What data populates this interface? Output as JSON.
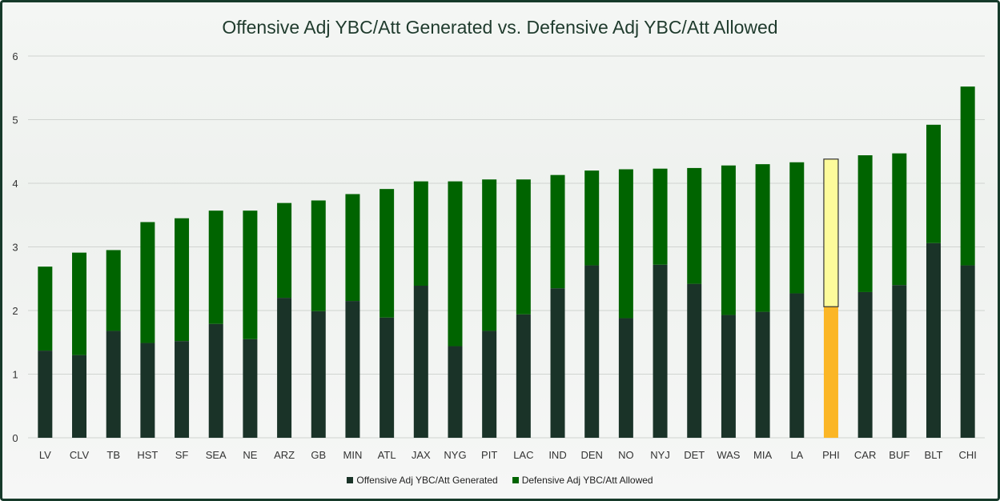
{
  "chart_data": {
    "type": "bar",
    "stacked": true,
    "title": "Offensive Adj YBC/Att Generated vs. Defensive Adj YBC/Att Allowed",
    "xlabel": "",
    "ylabel": "",
    "ylim": [
      0,
      6
    ],
    "yticks": [
      0,
      1,
      2,
      3,
      4,
      5,
      6
    ],
    "grid": true,
    "legend_position": "bottom",
    "categories": [
      "LV",
      "CLV",
      "TB",
      "HST",
      "SF",
      "SEA",
      "NE",
      "ARZ",
      "GB",
      "MIN",
      "ATL",
      "JAX",
      "NYG",
      "PIT",
      "LAC",
      "IND",
      "DEN",
      "NO",
      "NYJ",
      "DET",
      "WAS",
      "MIA",
      "LA",
      "PHI",
      "CAR",
      "BUF",
      "BLT",
      "CHI"
    ],
    "series": [
      {
        "name": "Offensive Adj YBC/Att Generated",
        "color": "#1a3328",
        "values": [
          1.37,
          1.3,
          1.68,
          1.49,
          1.52,
          1.79,
          1.55,
          2.2,
          1.99,
          2.15,
          1.89,
          2.39,
          1.44,
          1.68,
          1.94,
          2.35,
          2.71,
          1.88,
          2.72,
          2.42,
          1.93,
          1.98,
          2.27,
          2.06,
          2.29,
          2.4,
          3.06,
          2.71
        ]
      },
      {
        "name": "Defensive Adj YBC/Att Allowed",
        "color": "#006400",
        "values": [
          1.32,
          1.61,
          1.27,
          1.9,
          1.93,
          1.78,
          2.02,
          1.49,
          1.74,
          1.68,
          2.02,
          1.64,
          2.59,
          2.38,
          2.12,
          1.78,
          1.49,
          2.34,
          1.51,
          1.82,
          2.35,
          2.32,
          2.06,
          2.32,
          2.15,
          2.07,
          1.86,
          2.81
        ]
      }
    ],
    "highlight": {
      "category": "PHI",
      "colors": [
        "#fbb626",
        "#fdfb9b"
      ]
    }
  }
}
